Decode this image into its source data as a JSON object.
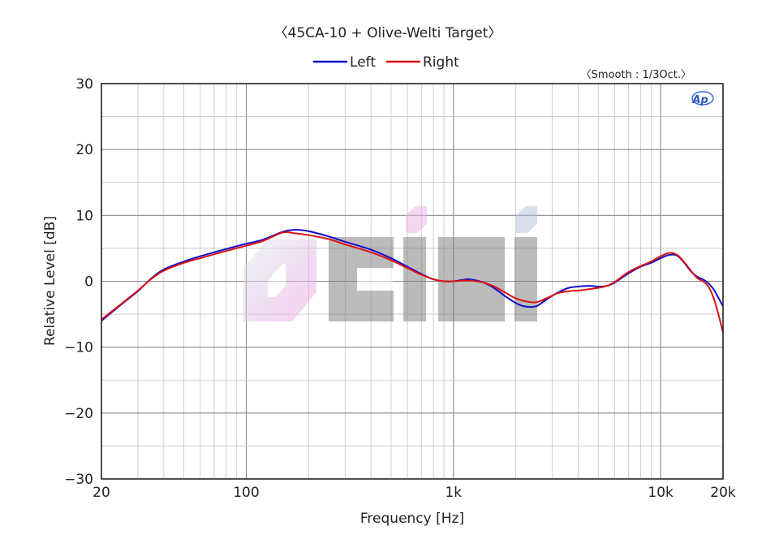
{
  "chart_data": {
    "type": "line",
    "title": "〈45CA-10 + Olive-Welti Target〉",
    "note": "〈Smooth : 1/3Oct.〉",
    "watermark_text": "ciki",
    "logo_text": "AP",
    "xlabel": "Frequency [Hz]",
    "ylabel": "Relative Level [dB]",
    "x_scale": "log",
    "xlim": [
      20,
      20000
    ],
    "ylim": [
      -30,
      30
    ],
    "x_ticks": [
      {
        "value": 20,
        "label": "20"
      },
      {
        "value": 100,
        "label": "100"
      },
      {
        "value": 1000,
        "label": "1k"
      },
      {
        "value": 10000,
        "label": "10k"
      },
      {
        "value": 20000,
        "label": "20k"
      }
    ],
    "y_ticks": [
      {
        "value": 30,
        "label": "30"
      },
      {
        "value": 20,
        "label": "20"
      },
      {
        "value": 10,
        "label": "10"
      },
      {
        "value": 0,
        "label": "0"
      },
      {
        "value": -10,
        "label": "−10"
      },
      {
        "value": -20,
        "label": "−20"
      },
      {
        "value": -30,
        "label": "−30"
      }
    ],
    "grid": true,
    "legend_position": "top-center",
    "series": [
      {
        "name": "Left",
        "color": "#1010c8",
        "x": [
          20,
          25,
          30,
          35,
          40,
          50,
          60,
          70,
          80,
          100,
          120,
          150,
          170,
          200,
          250,
          300,
          400,
          500,
          600,
          700,
          800,
          900,
          1000,
          1100,
          1200,
          1400,
          1600,
          1800,
          2000,
          2200,
          2500,
          2800,
          3200,
          3600,
          4000,
          4500,
          5000,
          5500,
          6000,
          7000,
          8000,
          9000,
          10000,
          11000,
          12000,
          13000,
          14000,
          15000,
          16000,
          17000,
          18000,
          19000,
          20000
        ],
        "y": [
          -6,
          -3.5,
          -1.5,
          0.5,
          1.8,
          3,
          3.8,
          4.4,
          4.9,
          5.7,
          6.3,
          7.5,
          7.8,
          7.6,
          6.8,
          6,
          4.8,
          3.5,
          2.2,
          1.1,
          0.3,
          0,
          0,
          0.2,
          0.3,
          -0.2,
          -1.2,
          -2.4,
          -3.3,
          -3.8,
          -3.8,
          -2.8,
          -1.7,
          -1,
          -0.8,
          -0.7,
          -0.8,
          -0.7,
          -0.2,
          1.2,
          2.2,
          2.8,
          3.5,
          4,
          3.9,
          2.8,
          1.5,
          0.7,
          0.3,
          -0.3,
          -1.2,
          -2.5,
          -3.8
        ]
      },
      {
        "name": "Right",
        "color": "#e01010",
        "x": [
          20,
          25,
          30,
          35,
          40,
          50,
          60,
          70,
          80,
          100,
          120,
          150,
          170,
          200,
          250,
          300,
          400,
          500,
          600,
          700,
          800,
          900,
          1000,
          1100,
          1200,
          1400,
          1600,
          1800,
          2000,
          2200,
          2500,
          2800,
          3200,
          3600,
          4000,
          4500,
          5000,
          5500,
          6000,
          7000,
          8000,
          9000,
          10000,
          11000,
          12000,
          13000,
          14000,
          15000,
          16000,
          17000,
          18000,
          19000,
          20000
        ],
        "y": [
          -5.8,
          -3.4,
          -1.4,
          0.4,
          1.6,
          2.8,
          3.5,
          4.1,
          4.6,
          5.4,
          6.1,
          7.4,
          7.3,
          7,
          6.4,
          5.6,
          4.4,
          3.2,
          2,
          1,
          0.3,
          0,
          0,
          0.1,
          0.1,
          -0.2,
          -0.9,
          -1.8,
          -2.6,
          -3,
          -3.2,
          -2.6,
          -1.8,
          -1.5,
          -1.4,
          -1.2,
          -1,
          -0.7,
          -0.1,
          1.4,
          2.3,
          3,
          3.8,
          4.3,
          4,
          2.9,
          1.6,
          0.5,
          0,
          -0.8,
          -2.5,
          -5,
          -7.8
        ]
      }
    ]
  }
}
